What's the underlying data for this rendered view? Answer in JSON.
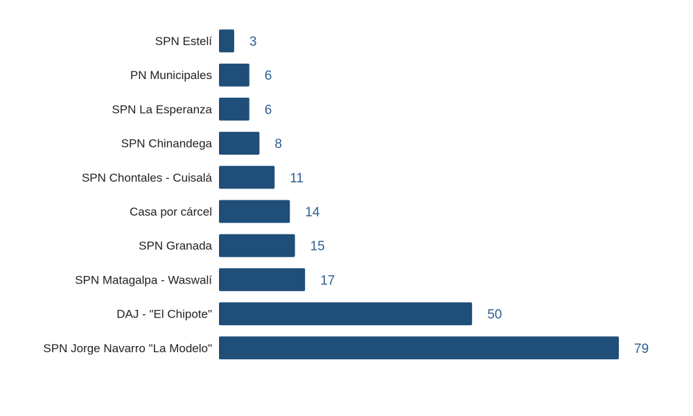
{
  "chart_data": {
    "type": "bar",
    "orientation": "horizontal",
    "categories": [
      "SPN Estelí",
      "PN Municipales",
      "SPN La Esperanza",
      "SPN Chinandega",
      "SPN Chontales - Cuisalá",
      "Casa por cárcel",
      "SPN Granada",
      "SPN Matagalpa - Waswalí",
      "DAJ - \"El Chipote\"",
      "SPN Jorge Navarro \"La Modelo\""
    ],
    "values": [
      3,
      6,
      6,
      8,
      11,
      14,
      15,
      17,
      50,
      79
    ],
    "value_labels": [
      "3",
      "6",
      "6",
      "8",
      "11",
      "14",
      "15",
      "17",
      "50",
      "79"
    ],
    "title": "",
    "xlabel": "",
    "ylabel": "",
    "xlim": [
      0,
      79
    ],
    "grid": false,
    "legend": "none",
    "bar_color": "#1f4e79",
    "label_color": "#2e5f93"
  }
}
